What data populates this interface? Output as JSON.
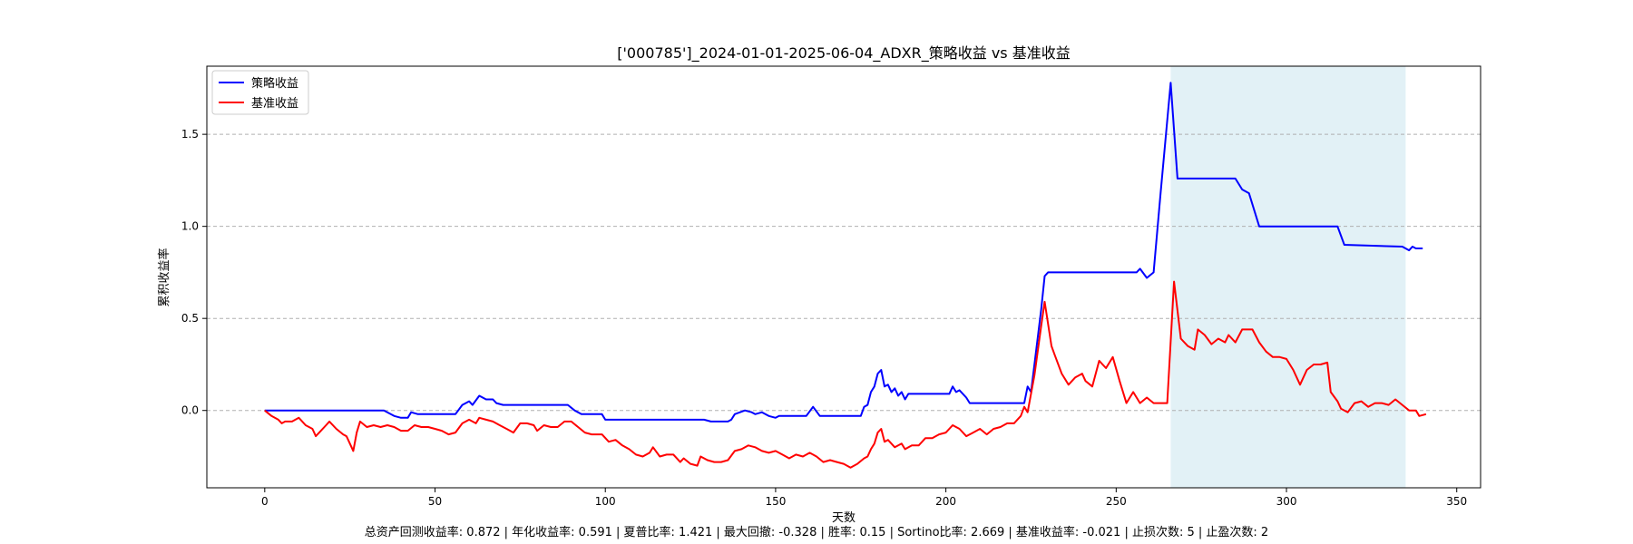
{
  "chart_data": {
    "type": "line",
    "title": "['000785']_2024-01-01-2025-06-04_ADXR_策略收益 vs 基准收益",
    "xlabel": "天数",
    "ylabel": "累积收益率",
    "xlim": [
      -17,
      357
    ],
    "ylim": [
      -0.42,
      1.87
    ],
    "xticks": [
      0,
      50,
      100,
      150,
      200,
      250,
      300,
      350
    ],
    "yticks": [
      0.0,
      0.5,
      1.0,
      1.5
    ],
    "ytick_labels": [
      "0.0",
      "0.5",
      "1.0",
      "1.5"
    ],
    "grid": "y-dashed",
    "legend_position": "top-left",
    "highlight_span": [
      266,
      335
    ],
    "series": [
      {
        "name": "策略收益",
        "color": "#0000ff",
        "points": [
          [
            0,
            0.0
          ],
          [
            35,
            0.0
          ],
          [
            38,
            -0.03
          ],
          [
            40,
            -0.04
          ],
          [
            42,
            -0.04
          ],
          [
            43,
            -0.01
          ],
          [
            45,
            -0.02
          ],
          [
            56,
            -0.02
          ],
          [
            58,
            0.03
          ],
          [
            60,
            0.05
          ],
          [
            61,
            0.03
          ],
          [
            63,
            0.08
          ],
          [
            65,
            0.06
          ],
          [
            67,
            0.06
          ],
          [
            68,
            0.04
          ],
          [
            70,
            0.03
          ],
          [
            89,
            0.03
          ],
          [
            91,
            0.0
          ],
          [
            93,
            -0.02
          ],
          [
            99,
            -0.02
          ],
          [
            100,
            -0.05
          ],
          [
            128,
            -0.05
          ],
          [
            129,
            -0.05
          ],
          [
            131,
            -0.06
          ],
          [
            136,
            -0.06
          ],
          [
            137,
            -0.05
          ],
          [
            138,
            -0.02
          ],
          [
            141,
            0.0
          ],
          [
            143,
            -0.01
          ],
          [
            144,
            -0.02
          ],
          [
            146,
            -0.01
          ],
          [
            148,
            -0.03
          ],
          [
            150,
            -0.04
          ],
          [
            151,
            -0.03
          ],
          [
            159,
            -0.03
          ],
          [
            161,
            0.02
          ],
          [
            163,
            -0.03
          ],
          [
            175,
            -0.03
          ],
          [
            176,
            0.02
          ],
          [
            177,
            0.03
          ],
          [
            178,
            0.1
          ],
          [
            179,
            0.13
          ],
          [
            180,
            0.2
          ],
          [
            181,
            0.22
          ],
          [
            182,
            0.13
          ],
          [
            183,
            0.14
          ],
          [
            184,
            0.1
          ],
          [
            185,
            0.12
          ],
          [
            186,
            0.08
          ],
          [
            187,
            0.1
          ],
          [
            188,
            0.06
          ],
          [
            189,
            0.09
          ],
          [
            195,
            0.09
          ],
          [
            201,
            0.09
          ],
          [
            202,
            0.13
          ],
          [
            203,
            0.1
          ],
          [
            204,
            0.11
          ],
          [
            206,
            0.07
          ],
          [
            207,
            0.04
          ],
          [
            223,
            0.04
          ],
          [
            224,
            0.13
          ],
          [
            225,
            0.1
          ],
          [
            228,
            0.55
          ],
          [
            229,
            0.73
          ],
          [
            230,
            0.75
          ],
          [
            256,
            0.75
          ],
          [
            257,
            0.77
          ],
          [
            259,
            0.72
          ],
          [
            261,
            0.75
          ],
          [
            263,
            1.17
          ],
          [
            266,
            1.78
          ],
          [
            268,
            1.26
          ],
          [
            285,
            1.26
          ],
          [
            287,
            1.2
          ],
          [
            289,
            1.18
          ],
          [
            292,
            1.0
          ],
          [
            315,
            1.0
          ],
          [
            317,
            0.9
          ],
          [
            334,
            0.89
          ],
          [
            336,
            0.87
          ],
          [
            337,
            0.89
          ],
          [
            338,
            0.88
          ],
          [
            340,
            0.88
          ]
        ]
      },
      {
        "name": "基准收益",
        "color": "#ff0000",
        "points": [
          [
            0,
            0.0
          ],
          [
            2,
            -0.03
          ],
          [
            4,
            -0.05
          ],
          [
            5,
            -0.07
          ],
          [
            6,
            -0.06
          ],
          [
            8,
            -0.06
          ],
          [
            10,
            -0.04
          ],
          [
            12,
            -0.08
          ],
          [
            14,
            -0.1
          ],
          [
            15,
            -0.14
          ],
          [
            16,
            -0.12
          ],
          [
            18,
            -0.08
          ],
          [
            19,
            -0.06
          ],
          [
            21,
            -0.1
          ],
          [
            23,
            -0.13
          ],
          [
            24,
            -0.14
          ],
          [
            25,
            -0.18
          ],
          [
            26,
            -0.22
          ],
          [
            27,
            -0.12
          ],
          [
            28,
            -0.06
          ],
          [
            30,
            -0.09
          ],
          [
            32,
            -0.08
          ],
          [
            34,
            -0.09
          ],
          [
            36,
            -0.08
          ],
          [
            38,
            -0.09
          ],
          [
            40,
            -0.11
          ],
          [
            42,
            -0.11
          ],
          [
            44,
            -0.08
          ],
          [
            46,
            -0.09
          ],
          [
            48,
            -0.09
          ],
          [
            50,
            -0.1
          ],
          [
            52,
            -0.11
          ],
          [
            54,
            -0.13
          ],
          [
            56,
            -0.12
          ],
          [
            58,
            -0.07
          ],
          [
            60,
            -0.05
          ],
          [
            62,
            -0.07
          ],
          [
            63,
            -0.04
          ],
          [
            65,
            -0.05
          ],
          [
            67,
            -0.06
          ],
          [
            69,
            -0.08
          ],
          [
            71,
            -0.1
          ],
          [
            73,
            -0.12
          ],
          [
            75,
            -0.07
          ],
          [
            77,
            -0.07
          ],
          [
            79,
            -0.08
          ],
          [
            80,
            -0.11
          ],
          [
            82,
            -0.08
          ],
          [
            84,
            -0.09
          ],
          [
            86,
            -0.09
          ],
          [
            88,
            -0.06
          ],
          [
            90,
            -0.06
          ],
          [
            92,
            -0.09
          ],
          [
            94,
            -0.12
          ],
          [
            96,
            -0.13
          ],
          [
            99,
            -0.13
          ],
          [
            101,
            -0.17
          ],
          [
            103,
            -0.16
          ],
          [
            105,
            -0.19
          ],
          [
            107,
            -0.21
          ],
          [
            109,
            -0.24
          ],
          [
            111,
            -0.25
          ],
          [
            113,
            -0.23
          ],
          [
            114,
            -0.2
          ],
          [
            116,
            -0.25
          ],
          [
            118,
            -0.24
          ],
          [
            120,
            -0.24
          ],
          [
            122,
            -0.28
          ],
          [
            123,
            -0.26
          ],
          [
            125,
            -0.29
          ],
          [
            127,
            -0.3
          ],
          [
            128,
            -0.25
          ],
          [
            130,
            -0.27
          ],
          [
            132,
            -0.28
          ],
          [
            134,
            -0.28
          ],
          [
            136,
            -0.27
          ],
          [
            138,
            -0.22
          ],
          [
            140,
            -0.21
          ],
          [
            142,
            -0.19
          ],
          [
            144,
            -0.2
          ],
          [
            146,
            -0.22
          ],
          [
            148,
            -0.23
          ],
          [
            150,
            -0.22
          ],
          [
            152,
            -0.24
          ],
          [
            154,
            -0.26
          ],
          [
            156,
            -0.24
          ],
          [
            158,
            -0.25
          ],
          [
            160,
            -0.23
          ],
          [
            162,
            -0.25
          ],
          [
            164,
            -0.28
          ],
          [
            166,
            -0.27
          ],
          [
            168,
            -0.28
          ],
          [
            170,
            -0.29
          ],
          [
            172,
            -0.31
          ],
          [
            174,
            -0.29
          ],
          [
            176,
            -0.26
          ],
          [
            177,
            -0.25
          ],
          [
            178,
            -0.21
          ],
          [
            179,
            -0.18
          ],
          [
            180,
            -0.12
          ],
          [
            181,
            -0.1
          ],
          [
            182,
            -0.17
          ],
          [
            183,
            -0.16
          ],
          [
            185,
            -0.2
          ],
          [
            187,
            -0.18
          ],
          [
            188,
            -0.21
          ],
          [
            190,
            -0.19
          ],
          [
            192,
            -0.19
          ],
          [
            194,
            -0.15
          ],
          [
            196,
            -0.15
          ],
          [
            198,
            -0.13
          ],
          [
            200,
            -0.12
          ],
          [
            202,
            -0.08
          ],
          [
            204,
            -0.1
          ],
          [
            206,
            -0.14
          ],
          [
            208,
            -0.12
          ],
          [
            210,
            -0.1
          ],
          [
            212,
            -0.13
          ],
          [
            214,
            -0.1
          ],
          [
            216,
            -0.09
          ],
          [
            218,
            -0.07
          ],
          [
            220,
            -0.07
          ],
          [
            222,
            -0.03
          ],
          [
            223,
            0.02
          ],
          [
            224,
            -0.01
          ],
          [
            226,
            0.19
          ],
          [
            228,
            0.46
          ],
          [
            229,
            0.59
          ],
          [
            231,
            0.35
          ],
          [
            232,
            0.3
          ],
          [
            234,
            0.2
          ],
          [
            236,
            0.14
          ],
          [
            238,
            0.18
          ],
          [
            240,
            0.2
          ],
          [
            241,
            0.16
          ],
          [
            243,
            0.13
          ],
          [
            245,
            0.27
          ],
          [
            247,
            0.23
          ],
          [
            249,
            0.29
          ],
          [
            251,
            0.16
          ],
          [
            253,
            0.04
          ],
          [
            255,
            0.1
          ],
          [
            257,
            0.04
          ],
          [
            259,
            0.07
          ],
          [
            261,
            0.04
          ],
          [
            263,
            0.04
          ],
          [
            265,
            0.04
          ],
          [
            267,
            0.7
          ],
          [
            269,
            0.39
          ],
          [
            271,
            0.35
          ],
          [
            273,
            0.33
          ],
          [
            274,
            0.44
          ],
          [
            276,
            0.41
          ],
          [
            278,
            0.36
          ],
          [
            280,
            0.39
          ],
          [
            282,
            0.37
          ],
          [
            283,
            0.41
          ],
          [
            285,
            0.37
          ],
          [
            287,
            0.44
          ],
          [
            290,
            0.44
          ],
          [
            292,
            0.37
          ],
          [
            294,
            0.32
          ],
          [
            296,
            0.29
          ],
          [
            298,
            0.29
          ],
          [
            300,
            0.28
          ],
          [
            302,
            0.22
          ],
          [
            304,
            0.14
          ],
          [
            306,
            0.22
          ],
          [
            308,
            0.25
          ],
          [
            310,
            0.25
          ],
          [
            312,
            0.26
          ],
          [
            313,
            0.1
          ],
          [
            315,
            0.05
          ],
          [
            316,
            0.01
          ],
          [
            318,
            -0.01
          ],
          [
            320,
            0.04
          ],
          [
            322,
            0.05
          ],
          [
            324,
            0.02
          ],
          [
            326,
            0.04
          ],
          [
            328,
            0.04
          ],
          [
            330,
            0.03
          ],
          [
            332,
            0.06
          ],
          [
            334,
            0.03
          ],
          [
            336,
            0.0
          ],
          [
            338,
            0.0
          ],
          [
            339,
            -0.03
          ],
          [
            341,
            -0.02
          ]
        ]
      }
    ]
  },
  "footer": {
    "stats_text": "总资产回测收益率: 0.872 | 年化收益率: 0.591 | 夏普比率: 1.421 | 最大回撤: -0.328 | 胜率: 0.15 | Sortino比率: 2.669 | 基准收益率: -0.021 | 止损次数: 5 | 止盈次数: 2"
  }
}
